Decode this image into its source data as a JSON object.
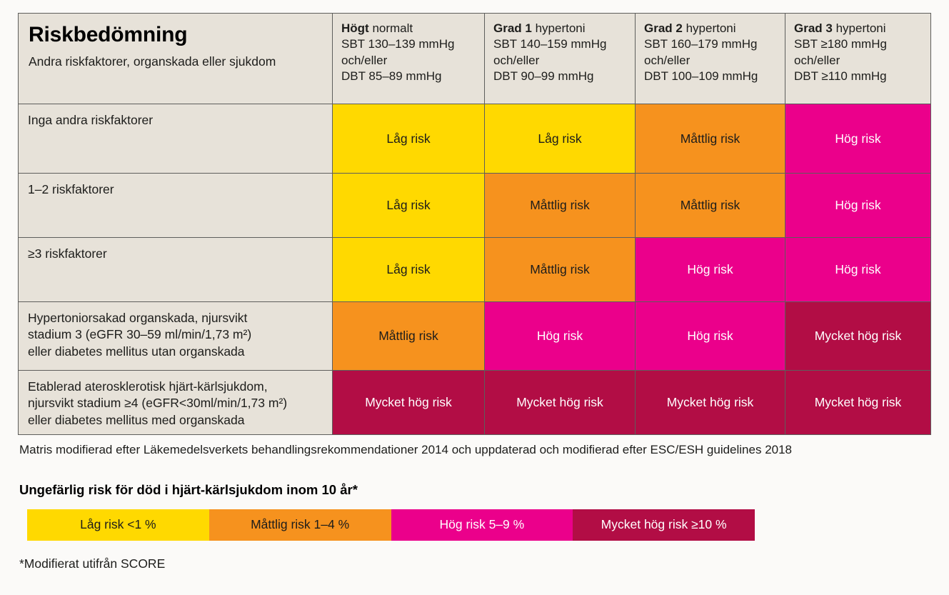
{
  "colors": {
    "low": "#FFD900",
    "moderate": "#F6921E",
    "high": "#EB008B",
    "very_high": "#B20D45",
    "text_on_light": "#1D1D1B",
    "text_on_dark": "#FFFFFF",
    "panel_beige": "#E7E2D9"
  },
  "table": {
    "title": "Riskbedömning",
    "subtitle": "Andra riskfaktorer, organskada eller sjukdom",
    "columns": [
      {
        "bold": "Högt",
        "rest": "normalt",
        "lines": [
          "SBT 130–139 mmHg",
          "och/eller",
          "DBT 85–89 mmHg"
        ]
      },
      {
        "bold": "Grad 1",
        "rest": "hypertoni",
        "lines": [
          "SBT 140–159 mmHg",
          "och/eller",
          "DBT 90–99 mmHg"
        ]
      },
      {
        "bold": "Grad 2",
        "rest": "hypertoni",
        "lines": [
          "SBT 160–179 mmHg",
          "och/eller",
          "DBT 100–109 mmHg"
        ]
      },
      {
        "bold": "Grad 3",
        "rest": "hypertoni",
        "lines": [
          "SBT ≥180 mmHg",
          "och/eller",
          "DBT ≥110 mmHg"
        ]
      }
    ],
    "rows": [
      {
        "label_lines": [
          "Inga andra riskfaktorer"
        ],
        "cells": [
          {
            "text": "Låg risk",
            "level": "low"
          },
          {
            "text": "Låg risk",
            "level": "low"
          },
          {
            "text": "Måttlig risk",
            "level": "moderate"
          },
          {
            "text": "Hög risk",
            "level": "high"
          }
        ]
      },
      {
        "label_lines": [
          "1–2 riskfaktorer"
        ],
        "cells": [
          {
            "text": "Låg risk",
            "level": "low"
          },
          {
            "text": "Måttlig risk",
            "level": "moderate"
          },
          {
            "text": "Måttlig risk",
            "level": "moderate"
          },
          {
            "text": "Hög risk",
            "level": "high"
          }
        ]
      },
      {
        "label_lines": [
          "≥3 riskfaktorer"
        ],
        "cells": [
          {
            "text": "Låg risk",
            "level": "low"
          },
          {
            "text": "Måttlig risk",
            "level": "moderate"
          },
          {
            "text": "Hög risk",
            "level": "high"
          },
          {
            "text": "Hög risk",
            "level": "high"
          }
        ]
      },
      {
        "label_lines": [
          "Hypertoniorsakad organskada, njursvikt",
          "stadium 3 (eGFR 30–59 ml/min/1,73 m²)",
          "eller diabetes mellitus utan organskada"
        ],
        "cells": [
          {
            "text": "Måttlig risk",
            "level": "moderate"
          },
          {
            "text": "Hög risk",
            "level": "high"
          },
          {
            "text": "Hög risk",
            "level": "high"
          },
          {
            "text": "Mycket hög risk",
            "level": "very_high"
          }
        ]
      },
      {
        "label_lines": [
          "Etablerad aterosklerotisk hjärt-kärlsjukdom,",
          "njursvikt stadium ≥4 (eGFR<30ml/min/1,73 m²)",
          "eller diabetes mellitus med organskada"
        ],
        "cells": [
          {
            "text": "Mycket hög risk",
            "level": "very_high"
          },
          {
            "text": "Mycket hög risk",
            "level": "very_high"
          },
          {
            "text": "Mycket hög risk",
            "level": "very_high"
          },
          {
            "text": "Mycket hög risk",
            "level": "very_high"
          }
        ]
      }
    ]
  },
  "notes": {
    "matrix": "Matris modifierad efter Läkemedelsverkets behandlingsrekommendationer 2014 och uppdaterad och modifierad efter ESC/ESH guidelines 2018",
    "score": "*Modifierat utifrån SCORE"
  },
  "legend": {
    "title": "Ungefärlig risk för död i hjärt-kärlsjukdom inom 10 år*",
    "items": [
      {
        "text": "Låg risk <1 %",
        "level": "low"
      },
      {
        "text": "Måttlig risk 1–4 %",
        "level": "moderate"
      },
      {
        "text": "Hög risk 5–9 %",
        "level": "high"
      },
      {
        "text": "Mycket hög risk ≥10 %",
        "level": "very_high"
      }
    ]
  },
  "chart_data": {
    "type": "table",
    "title": "Riskbedömning",
    "subtitle": "Andra riskfaktorer, organskada eller sjukdom",
    "columns": [
      "Högt normalt SBT 130–139 mmHg och/eller DBT 85–89 mmHg",
      "Grad 1 hypertoni SBT 140–159 mmHg och/eller DBT 90–99 mmHg",
      "Grad 2 hypertoni SBT 160–179 mmHg och/eller DBT 100–109 mmHg",
      "Grad 3 hypertoni SBT ≥180 mmHg och/eller DBT ≥110 mmHg"
    ],
    "rows": [
      "Inga andra riskfaktorer",
      "1–2 riskfaktorer",
      "≥3 riskfaktorer",
      "Hypertoniorsakad organskada, njursvikt stadium 3 (eGFR 30–59 ml/min/1,73 m²) eller diabetes mellitus utan organskada",
      "Etablerad aterosklerotisk hjärt-kärlsjukdom, njursvikt stadium ≥4 (eGFR<30ml/min/1,73 m²) eller diabetes mellitus med organskada"
    ],
    "values": [
      [
        "Låg risk",
        "Låg risk",
        "Måttlig risk",
        "Hög risk"
      ],
      [
        "Låg risk",
        "Måttlig risk",
        "Måttlig risk",
        "Hög risk"
      ],
      [
        "Låg risk",
        "Måttlig risk",
        "Hög risk",
        "Hög risk"
      ],
      [
        "Måttlig risk",
        "Hög risk",
        "Hög risk",
        "Mycket hög risk"
      ],
      [
        "Mycket hög risk",
        "Mycket hög risk",
        "Mycket hög risk",
        "Mycket hög risk"
      ]
    ],
    "legend": [
      "Låg risk <1 %",
      "Måttlig risk 1–4 %",
      "Hög risk 5–9 %",
      "Mycket hög risk ≥10 %"
    ],
    "footnotes": [
      "Matris modifierad efter Läkemedelsverkets behandlingsrekommendationer 2014 och uppdaterad och modifierad efter ESC/ESH guidelines 2018",
      "Ungefärlig risk för död i hjärt-kärlsjukdom inom 10 år*",
      "*Modifierat utifrån SCORE"
    ]
  }
}
